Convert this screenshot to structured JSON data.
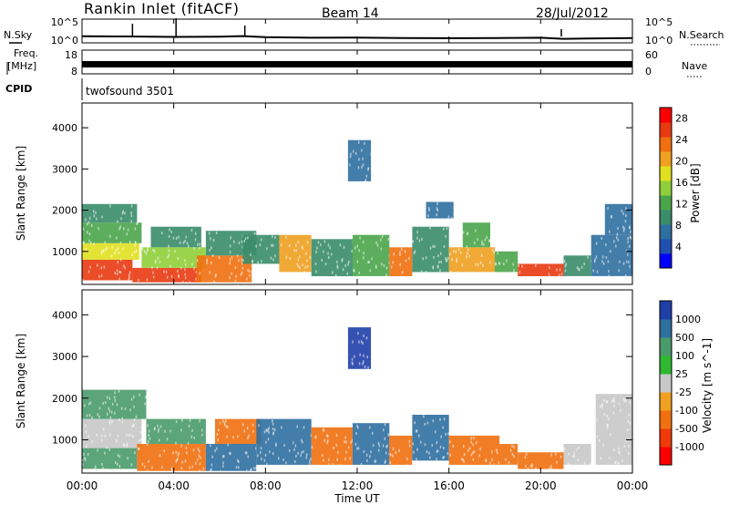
{
  "header": {
    "title": "Rankin Inlet (fitACF)",
    "beam": "Beam 14",
    "date": "28/Jul/2012"
  },
  "noise_panel": {
    "left_label": "N.Sky",
    "left_ticks": [
      "10^5",
      "10^0"
    ],
    "right_label": "N.Search",
    "right_ticks": [
      "10^5",
      "10^0"
    ]
  },
  "freq_panel": {
    "left_label_1": "Freq.",
    "left_label_2": "[MHz]",
    "left_ticks": [
      "18",
      "8"
    ],
    "right_label": "Nave",
    "right_ticks": [
      "60",
      "0"
    ]
  },
  "cpid_panel": {
    "label": "CPID",
    "program": "twofsound 3501"
  },
  "x_axis": {
    "label": "Time UT",
    "ticks": [
      "00:00",
      "04:00",
      "08:00",
      "12:00",
      "16:00",
      "20:00",
      "00:00"
    ]
  },
  "colors": {
    "power": [
      "#0000ff",
      "#1f4fb0",
      "#2f6fa0",
      "#3a8c6a",
      "#4aa54a",
      "#8fcf3a",
      "#e0e020",
      "#f0a020",
      "#f07010",
      "#e83a10",
      "#ff0000"
    ],
    "velocity": [
      "#ff0000",
      "#f03a0a",
      "#f07010",
      "#f0a020",
      "#c8c8c8",
      "#2fb82f",
      "#4a9a6a",
      "#2f6fa0",
      "#1f3fa8"
    ]
  },
  "chart_data": [
    {
      "type": "line",
      "title": "N.Sky / N.Search",
      "xlabel": "",
      "ylabel": "N.Sky",
      "yscale": "log",
      "ylim": [
        1,
        100000
      ],
      "x": [
        "00:00",
        "02:00",
        "04:00",
        "06:00",
        "07:00",
        "08:00",
        "10:00",
        "12:00",
        "14:00",
        "16:00",
        "18:00",
        "20:00",
        "21:00",
        "22:00",
        "24:00"
      ],
      "series": [
        {
          "name": "N.Sky",
          "values": [
            20,
            18,
            14,
            16,
            22,
            12,
            9,
            10,
            8,
            7,
            8,
            9,
            5,
            6,
            8
          ]
        }
      ]
    },
    {
      "type": "line",
      "title": "Freq. / Nave",
      "ylabel": "Freq. [MHz]",
      "ylim": [
        8,
        18
      ],
      "y2label": "Nave",
      "y2lim": [
        0,
        60
      ],
      "x": [
        "00:00",
        "04:00",
        "08:00",
        "12:00",
        "16:00",
        "20:00",
        "24:00"
      ],
      "series": [
        {
          "name": "Freq.",
          "values": [
            12,
            12,
            12,
            12,
            12,
            12,
            12
          ]
        },
        {
          "name": "Nave",
          "values": [
            30,
            30,
            30,
            30,
            30,
            30,
            30
          ]
        }
      ]
    },
    {
      "type": "heatmap",
      "title": "",
      "xlabel": "",
      "ylabel": "Slant Range [km]",
      "xlim": [
        0,
        24
      ],
      "ylim": [
        200,
        4600
      ],
      "yticks": [
        1000,
        2000,
        3000,
        4000
      ],
      "colorbar": {
        "label": "Power [dB]",
        "ticks": [
          4,
          8,
          12,
          16,
          20,
          24,
          28
        ],
        "range": [
          0,
          30
        ]
      },
      "regions": [
        {
          "t0": 0.0,
          "t1": 2.2,
          "r0": 300,
          "r1": 800,
          "value": 27
        },
        {
          "t0": 0.0,
          "t1": 2.5,
          "r0": 800,
          "r1": 1200,
          "value": 18
        },
        {
          "t0": 0.0,
          "t1": 2.6,
          "r0": 1200,
          "r1": 1700,
          "value": 12
        },
        {
          "t0": 0.0,
          "t1": 2.4,
          "r0": 1700,
          "r1": 2150,
          "value": 9
        },
        {
          "t0": 2.2,
          "t1": 5.2,
          "r0": 250,
          "r1": 600,
          "value": 27
        },
        {
          "t0": 2.6,
          "t1": 5.4,
          "r0": 600,
          "r1": 1100,
          "value": 14
        },
        {
          "t0": 3.0,
          "t1": 5.2,
          "r0": 1100,
          "r1": 1600,
          "value": 9
        },
        {
          "t0": 5.0,
          "t1": 7.4,
          "r0": 250,
          "r1": 900,
          "value": 22
        },
        {
          "t0": 5.4,
          "t1": 7.6,
          "r0": 900,
          "r1": 1500,
          "value": 10
        },
        {
          "t0": 7.0,
          "t1": 8.6,
          "r0": 700,
          "r1": 1400,
          "value": 9
        },
        {
          "t0": 8.6,
          "t1": 10.0,
          "r0": 500,
          "r1": 1400,
          "value": 20
        },
        {
          "t0": 10.0,
          "t1": 11.8,
          "r0": 400,
          "r1": 1300,
          "value": 10
        },
        {
          "t0": 11.6,
          "t1": 12.6,
          "r0": 2700,
          "r1": 3700,
          "value": 6
        },
        {
          "t0": 11.8,
          "t1": 13.4,
          "r0": 400,
          "r1": 1400,
          "value": 12
        },
        {
          "t0": 13.4,
          "t1": 14.4,
          "r0": 400,
          "r1": 1100,
          "value": 22
        },
        {
          "t0": 14.4,
          "t1": 16.0,
          "r0": 500,
          "r1": 1600,
          "value": 10
        },
        {
          "t0": 15.0,
          "t1": 16.2,
          "r0": 1800,
          "r1": 2200,
          "value": 6
        },
        {
          "t0": 16.0,
          "t1": 18.0,
          "r0": 500,
          "r1": 1100,
          "value": 20
        },
        {
          "t0": 16.6,
          "t1": 17.8,
          "r0": 1100,
          "r1": 1700,
          "value": 11
        },
        {
          "t0": 18.0,
          "t1": 19.0,
          "r0": 500,
          "r1": 1000,
          "value": 12
        },
        {
          "t0": 19.0,
          "t1": 21.0,
          "r0": 400,
          "r1": 700,
          "value": 26
        },
        {
          "t0": 21.0,
          "t1": 22.2,
          "r0": 400,
          "r1": 900,
          "value": 9
        },
        {
          "t0": 22.2,
          "t1": 24.0,
          "r0": 400,
          "r1": 1400,
          "value": 8
        },
        {
          "t0": 22.8,
          "t1": 24.0,
          "r0": 1400,
          "r1": 2150,
          "value": 7
        }
      ]
    },
    {
      "type": "heatmap",
      "title": "",
      "xlabel": "Time UT",
      "ylabel": "Slant Range [km]",
      "xlim": [
        0,
        24
      ],
      "ylim": [
        200,
        4600
      ],
      "yticks": [
        1000,
        2000,
        3000,
        4000
      ],
      "colorbar": {
        "label": "Velocity [m s^-1]",
        "ticks": [
          1000,
          500,
          100,
          25,
          -25,
          -100,
          -500,
          -1000
        ]
      },
      "regions": [
        {
          "t0": 0.0,
          "t1": 2.4,
          "r0": 300,
          "r1": 800,
          "value": 200
        },
        {
          "t0": 0.0,
          "t1": 2.6,
          "r0": 800,
          "r1": 1500,
          "value": 0
        },
        {
          "t0": 0.0,
          "t1": 2.8,
          "r0": 1500,
          "r1": 2200,
          "value": 150
        },
        {
          "t0": 2.4,
          "t1": 5.4,
          "r0": 250,
          "r1": 900,
          "value": -300
        },
        {
          "t0": 2.8,
          "t1": 5.4,
          "r0": 900,
          "r1": 1500,
          "value": 150
        },
        {
          "t0": 5.4,
          "t1": 7.6,
          "r0": 250,
          "r1": 900,
          "value": 300
        },
        {
          "t0": 5.8,
          "t1": 7.8,
          "r0": 900,
          "r1": 1500,
          "value": -150
        },
        {
          "t0": 7.6,
          "t1": 10.0,
          "r0": 400,
          "r1": 1500,
          "value": 600
        },
        {
          "t0": 10.0,
          "t1": 11.8,
          "r0": 400,
          "r1": 1300,
          "value": -200
        },
        {
          "t0": 11.6,
          "t1": 12.6,
          "r0": 2700,
          "r1": 3700,
          "value": 1000
        },
        {
          "t0": 11.8,
          "t1": 13.4,
          "r0": 400,
          "r1": 1400,
          "value": 700
        },
        {
          "t0": 13.4,
          "t1": 14.4,
          "r0": 400,
          "r1": 1100,
          "value": -150
        },
        {
          "t0": 14.4,
          "t1": 16.0,
          "r0": 500,
          "r1": 1600,
          "value": 600
        },
        {
          "t0": 16.0,
          "t1": 18.2,
          "r0": 400,
          "r1": 1100,
          "value": -300
        },
        {
          "t0": 18.2,
          "t1": 19.0,
          "r0": 400,
          "r1": 900,
          "value": -150
        },
        {
          "t0": 19.0,
          "t1": 21.0,
          "r0": 300,
          "r1": 700,
          "value": -400
        },
        {
          "t0": 21.0,
          "t1": 22.2,
          "r0": 400,
          "r1": 900,
          "value": 0
        },
        {
          "t0": 22.4,
          "t1": 24.0,
          "r0": 400,
          "r1": 2100,
          "value": 0
        }
      ]
    }
  ]
}
